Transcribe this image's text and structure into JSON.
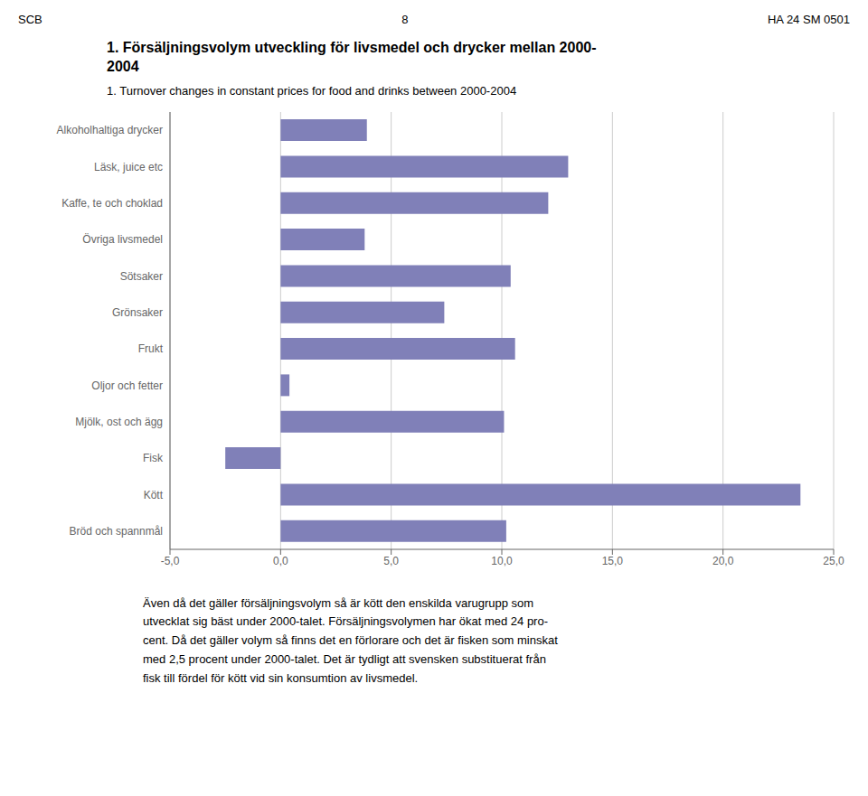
{
  "chart_data": {
    "type": "bar",
    "orientation": "horizontal",
    "header": [
      "SCB",
      "8",
      "HA 24 SM 0501"
    ],
    "title": "1. Försäljningsvolym utveckling för livsmedel och drycker mellan 2000-\n2004",
    "subtitle": "1. Turnover changes in constant prices for food and drinks between 2000-2004",
    "categories": [
      "Bröd och spannmål",
      "Kött",
      "Fisk",
      "Mjölk, ost och ägg",
      "Oljor och fetter",
      "Frukt",
      "Grönsaker",
      "Sötsaker",
      "Övriga livsmedel",
      "Kaffe, te och choklad",
      "Läsk, juice etc",
      "Alkoholhaltiga drycker"
    ],
    "values": [
      10.2,
      23.5,
      -2.5,
      10.1,
      0.4,
      10.6,
      7.4,
      10.4,
      3.8,
      12.1,
      13.0,
      3.9
    ],
    "color": "#8080B8",
    "xlim": [
      -5.0,
      25.0
    ],
    "xticks": [
      {
        "value": -5.0,
        "label": "-5,0"
      },
      {
        "value": 0.0,
        "label": "0,0"
      },
      {
        "value": 5.0,
        "label": "5,0"
      },
      {
        "value": 10.0,
        "label": "10,0"
      },
      {
        "value": 15.0,
        "label": "15,0"
      },
      {
        "value": 20.0,
        "label": "20,0"
      },
      {
        "value": 25.0,
        "label": "25,0"
      }
    ],
    "grid": true,
    "footer": "Även då det gäller försäljningsvolym så är kött den enskilda varugrupp som\nutvecklat sig bäst under 2000-talet. Försäljningsvolymen har ökat med 24 pro-\ncent. Då det gäller volym så finns det en förlorare och det är fisken som minskat\nmed 2,5 procent under 2000-talet. Det är tydligt att svensken substituerat från\nfisk till fördel för kött vid sin konsumtion av livsmedel."
  }
}
